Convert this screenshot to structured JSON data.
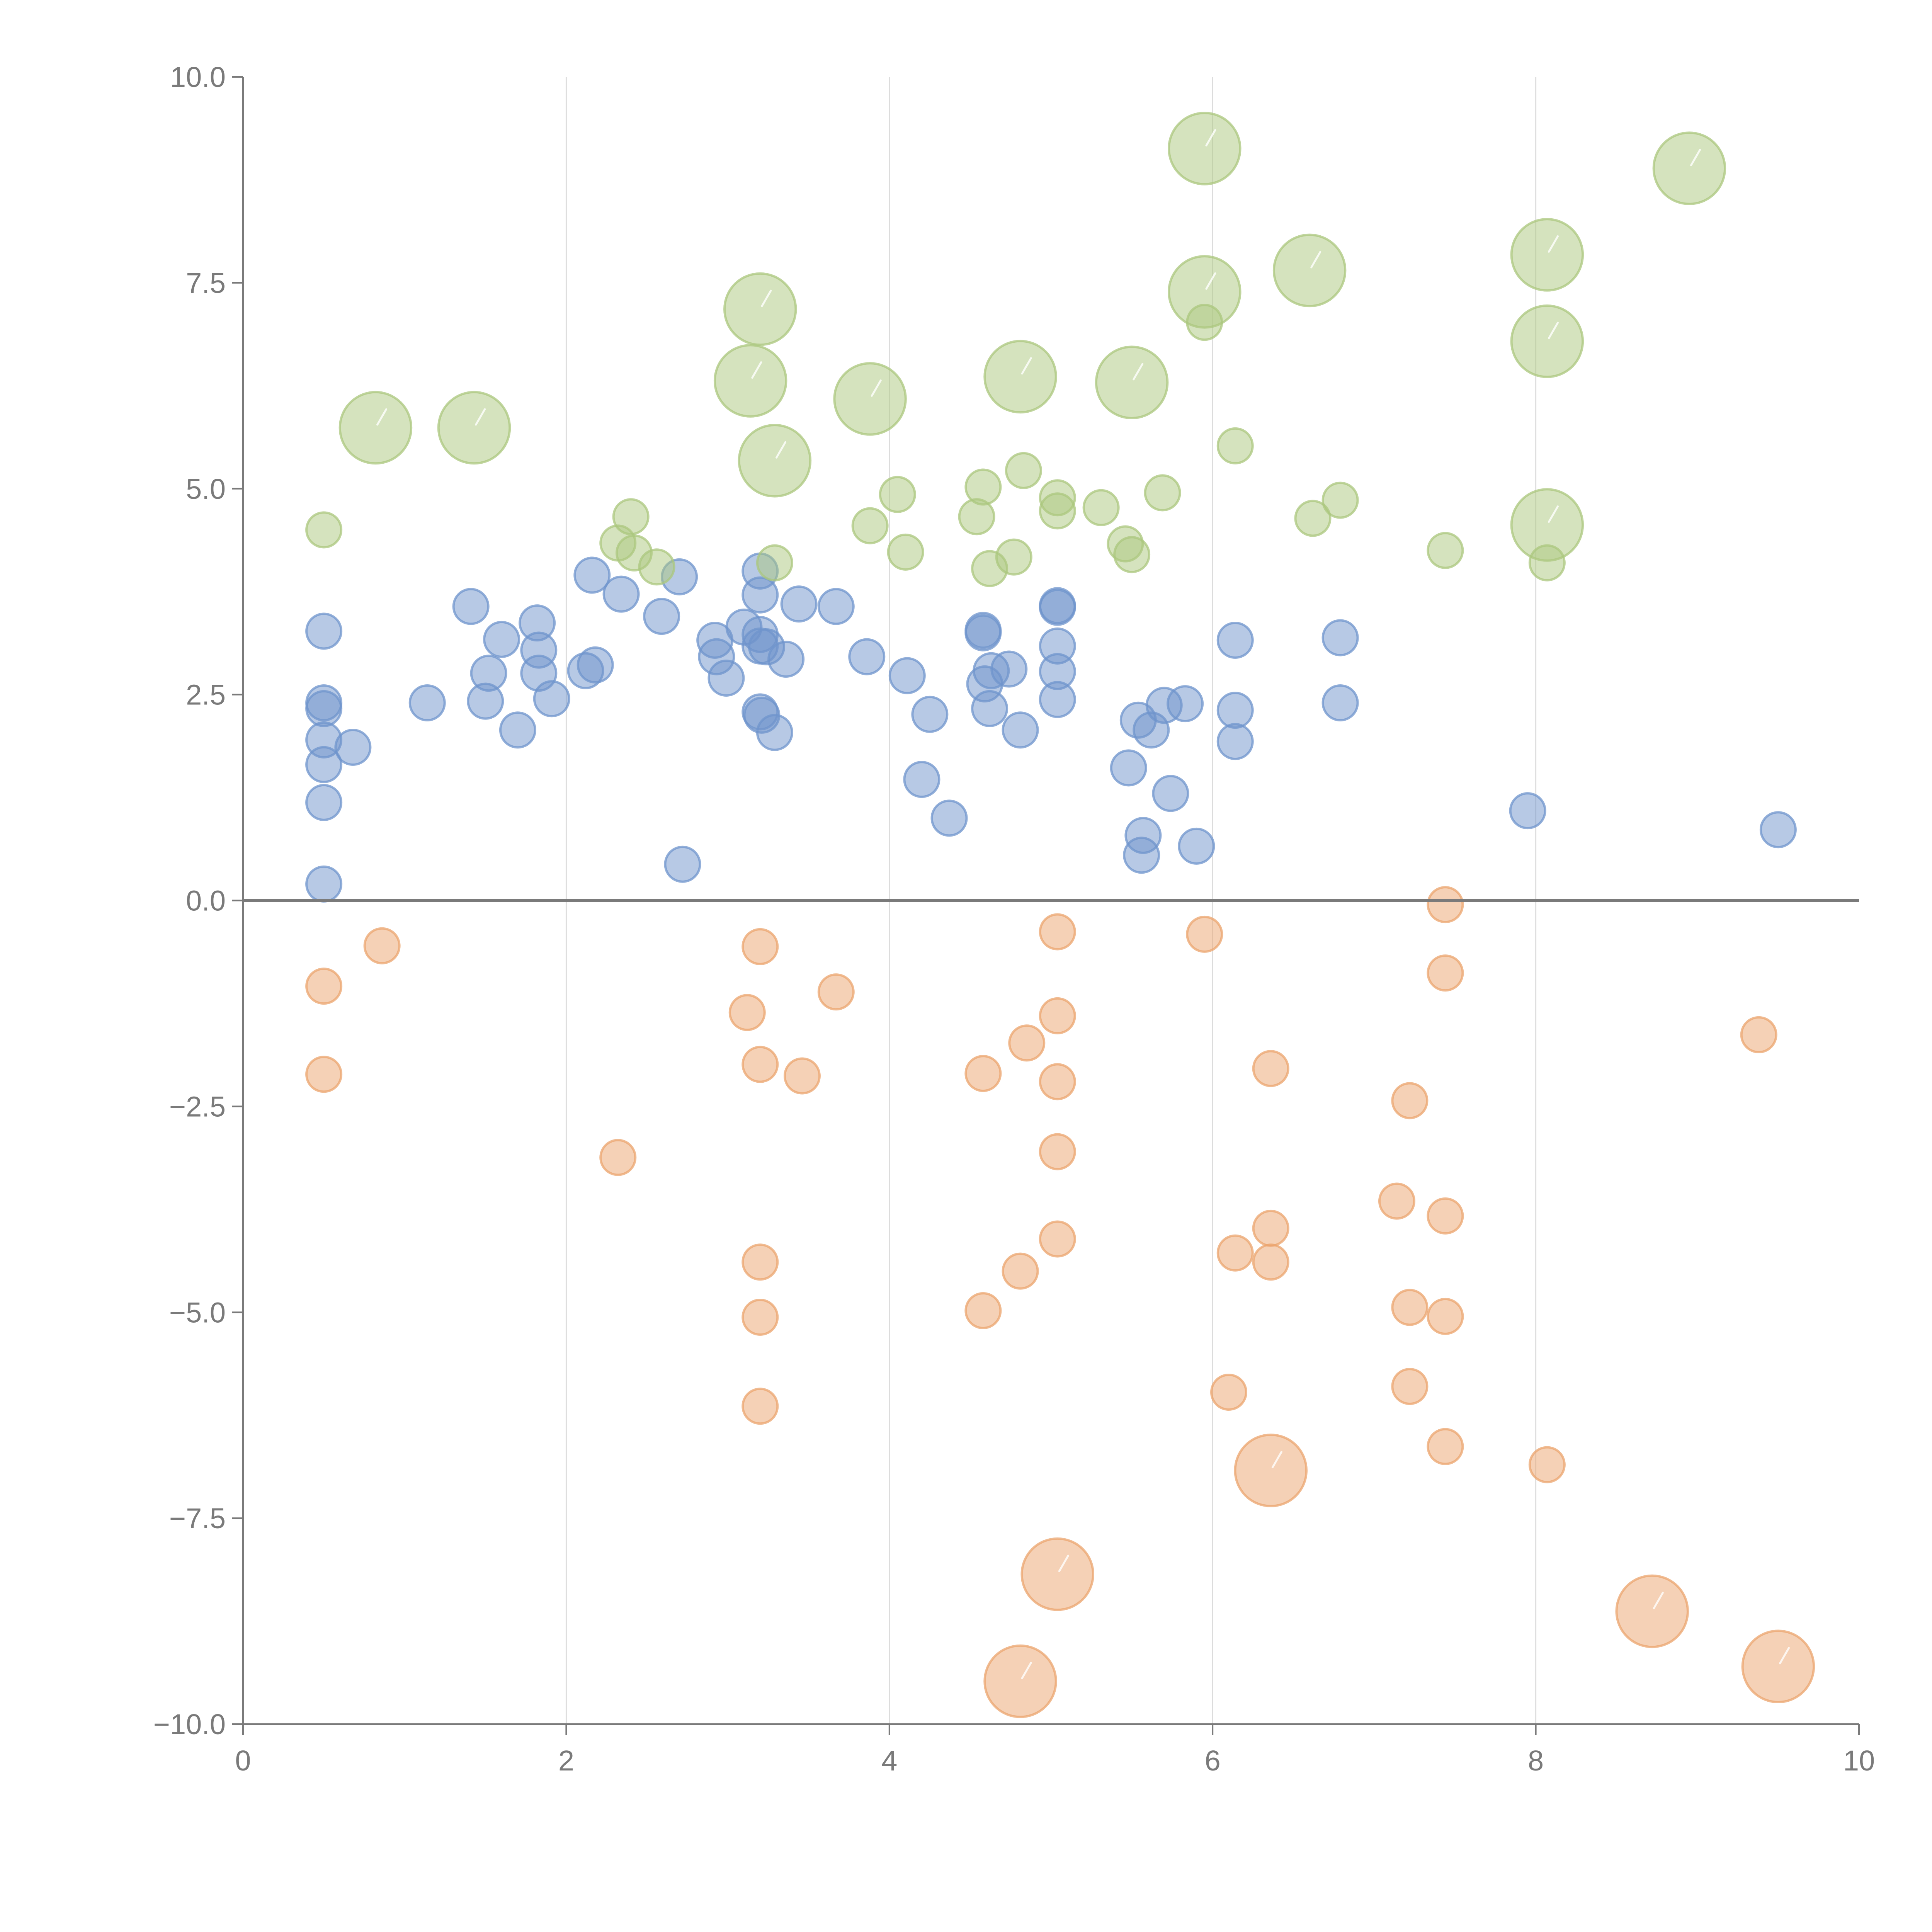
{
  "chart_data": {
    "type": "scatter",
    "title": "",
    "xlabel": "",
    "ylabel": "",
    "xlim": [
      0,
      10
    ],
    "ylim": [
      -10,
      10
    ],
    "x_ticks": [
      0,
      2,
      4,
      6,
      8,
      10
    ],
    "x_tick_labels": [
      "0",
      "2",
      "4",
      "6",
      "8",
      "10"
    ],
    "y_ticks": [
      10,
      7.5,
      5,
      2.5,
      0,
      -2.5,
      -5,
      -7.5,
      -10
    ],
    "y_tick_labels": [
      "10.0",
      "7.5",
      "5.0",
      "2.5",
      "0.0",
      "−2.5",
      "−5.0",
      "−7.5",
      "−10.0"
    ],
    "vertical_grid_at": [
      2,
      4,
      6,
      8
    ],
    "reference_line_y": 0,
    "size_note": "bubble size in relative units (1 = small marker)",
    "series": [
      {
        "name": "blue",
        "color": "#6f94cc",
        "points": [
          [
            0.5,
            3.27,
            1
          ],
          [
            0.5,
            2.4,
            1
          ],
          [
            0.5,
            2.33,
            1
          ],
          [
            0.5,
            1.95,
            1
          ],
          [
            0.5,
            1.65,
            1
          ],
          [
            0.5,
            1.19,
            1
          ],
          [
            0.5,
            0.2,
            1
          ],
          [
            0.68,
            1.86,
            1
          ],
          [
            1.14,
            2.4,
            1
          ],
          [
            1.41,
            3.57,
            1
          ],
          [
            1.5,
            2.42,
            1
          ],
          [
            1.52,
            2.76,
            1
          ],
          [
            1.6,
            3.17,
            1
          ],
          [
            1.7,
            2.07,
            1
          ],
          [
            1.82,
            3.37,
            1
          ],
          [
            1.83,
            3.04,
            1
          ],
          [
            1.83,
            2.76,
            1
          ],
          [
            1.91,
            2.45,
            1
          ],
          [
            2.12,
            2.79,
            1
          ],
          [
            2.16,
            3.95,
            1
          ],
          [
            2.18,
            2.86,
            1
          ],
          [
            2.34,
            3.72,
            1
          ],
          [
            2.59,
            3.45,
            1
          ],
          [
            2.7,
            3.93,
            1
          ],
          [
            2.72,
            0.44,
            1
          ],
          [
            2.92,
            3.16,
            1
          ],
          [
            2.93,
            2.96,
            1
          ],
          [
            2.99,
            2.7,
            1
          ],
          [
            3.1,
            3.32,
            1
          ],
          [
            3.2,
            4.0,
            1
          ],
          [
            3.2,
            3.71,
            1
          ],
          [
            3.2,
            3.23,
            1
          ],
          [
            3.2,
            3.09,
            1
          ],
          [
            3.2,
            2.29,
            1
          ],
          [
            3.21,
            2.25,
            1
          ],
          [
            3.24,
            3.08,
            1
          ],
          [
            3.29,
            2.04,
            1
          ],
          [
            3.36,
            2.93,
            1
          ],
          [
            3.44,
            3.6,
            1
          ],
          [
            3.67,
            3.57,
            1
          ],
          [
            3.86,
            2.96,
            1
          ],
          [
            4.11,
            2.73,
            1
          ],
          [
            4.2,
            1.47,
            1
          ],
          [
            4.25,
            2.26,
            1
          ],
          [
            4.37,
            1.0,
            1
          ],
          [
            4.58,
            3.28,
            1
          ],
          [
            4.58,
            3.25,
            1
          ],
          [
            4.59,
            2.63,
            1
          ],
          [
            4.62,
            2.33,
            1
          ],
          [
            4.63,
            2.79,
            1
          ],
          [
            4.74,
            2.81,
            1
          ],
          [
            4.81,
            2.07,
            1
          ],
          [
            5.04,
            3.58,
            1
          ],
          [
            5.04,
            3.56,
            1
          ],
          [
            5.04,
            3.09,
            1
          ],
          [
            5.04,
            2.78,
            1
          ],
          [
            5.04,
            2.44,
            1
          ],
          [
            5.48,
            1.61,
            1
          ],
          [
            5.54,
            2.19,
            1
          ],
          [
            5.56,
            0.55,
            1
          ],
          [
            5.57,
            0.79,
            1
          ],
          [
            5.62,
            2.07,
            1
          ],
          [
            5.7,
            2.37,
            1
          ],
          [
            5.74,
            1.3,
            1
          ],
          [
            5.83,
            2.39,
            1
          ],
          [
            5.9,
            0.66,
            1
          ],
          [
            6.14,
            3.16,
            1
          ],
          [
            6.14,
            2.31,
            1
          ],
          [
            6.14,
            1.93,
            1
          ],
          [
            6.79,
            3.19,
            1
          ],
          [
            6.79,
            2.4,
            1
          ],
          [
            7.95,
            1.09,
            1
          ],
          [
            9.5,
            0.86,
            1
          ]
        ]
      },
      {
        "name": "green",
        "color": "#abc77e",
        "points": [
          [
            0.5,
            4.5,
            1
          ],
          [
            0.82,
            5.74,
            2.05
          ],
          [
            1.43,
            5.74,
            2.05
          ],
          [
            2.32,
            4.34,
            1
          ],
          [
            2.4,
            4.66,
            1
          ],
          [
            2.42,
            4.22,
            1
          ],
          [
            2.56,
            4.05,
            1
          ],
          [
            3.14,
            6.31,
            2.05
          ],
          [
            3.2,
            7.18,
            2.05
          ],
          [
            3.29,
            4.1,
            1
          ],
          [
            3.29,
            5.34,
            2.05
          ],
          [
            3.88,
            4.55,
            1
          ],
          [
            3.88,
            6.09,
            2.05
          ],
          [
            4.05,
            4.93,
            1
          ],
          [
            4.1,
            4.23,
            1
          ],
          [
            4.54,
            4.66,
            1
          ],
          [
            4.58,
            5.02,
            1
          ],
          [
            4.62,
            4.03,
            1
          ],
          [
            4.77,
            4.17,
            1
          ],
          [
            4.81,
            6.36,
            2.05
          ],
          [
            4.83,
            5.22,
            1
          ],
          [
            5.04,
            4.89,
            1
          ],
          [
            5.04,
            4.73,
            1
          ],
          [
            5.31,
            4.77,
            1
          ],
          [
            5.46,
            4.33,
            1
          ],
          [
            5.5,
            4.2,
            1
          ],
          [
            5.5,
            6.29,
            2.05
          ],
          [
            5.69,
            4.95,
            1
          ],
          [
            5.95,
            9.13,
            2.05
          ],
          [
            5.95,
            7.39,
            2.05
          ],
          [
            5.95,
            7.02,
            1
          ],
          [
            6.14,
            5.52,
            1
          ],
          [
            6.6,
            7.65,
            2.05
          ],
          [
            6.62,
            4.64,
            1
          ],
          [
            6.79,
            4.86,
            1
          ],
          [
            7.44,
            4.25,
            1
          ],
          [
            8.07,
            7.84,
            2.05
          ],
          [
            8.07,
            6.79,
            2.05
          ],
          [
            8.07,
            4.56,
            2.05
          ],
          [
            8.07,
            4.1,
            1
          ],
          [
            8.95,
            8.89,
            2.05
          ]
        ]
      },
      {
        "name": "orange",
        "color": "#eba46e",
        "points": [
          [
            0.5,
            -1.04,
            1
          ],
          [
            0.5,
            -2.11,
            1
          ],
          [
            0.86,
            -0.55,
            1
          ],
          [
            2.32,
            -3.12,
            1
          ],
          [
            3.12,
            -1.36,
            1
          ],
          [
            3.2,
            -0.56,
            1
          ],
          [
            3.2,
            -1.99,
            1
          ],
          [
            3.2,
            -4.39,
            1
          ],
          [
            3.2,
            -5.06,
            1
          ],
          [
            3.2,
            -6.14,
            1
          ],
          [
            3.46,
            -2.13,
            1
          ],
          [
            3.67,
            -1.11,
            1
          ],
          [
            4.58,
            -2.1,
            1
          ],
          [
            4.58,
            -4.98,
            1
          ],
          [
            4.81,
            -4.5,
            1
          ],
          [
            4.81,
            -9.48,
            2.05
          ],
          [
            4.85,
            -1.73,
            1
          ],
          [
            5.04,
            -0.38,
            1
          ],
          [
            5.04,
            -1.4,
            1
          ],
          [
            5.04,
            -2.2,
            1
          ],
          [
            5.04,
            -3.05,
            1
          ],
          [
            5.04,
            -4.11,
            1
          ],
          [
            5.04,
            -8.18,
            2.05
          ],
          [
            5.95,
            -0.41,
            1
          ],
          [
            6.1,
            -5.97,
            1
          ],
          [
            6.14,
            -4.28,
            1
          ],
          [
            6.36,
            -2.04,
            1
          ],
          [
            6.36,
            -3.98,
            1
          ],
          [
            6.36,
            -4.39,
            1
          ],
          [
            6.36,
            -6.92,
            2.05
          ],
          [
            7.14,
            -3.65,
            1
          ],
          [
            7.22,
            -2.43,
            1
          ],
          [
            7.22,
            -4.94,
            1
          ],
          [
            7.22,
            -5.9,
            1
          ],
          [
            7.44,
            -0.05,
            1
          ],
          [
            7.44,
            -0.88,
            1
          ],
          [
            7.44,
            -3.83,
            1
          ],
          [
            7.44,
            -5.05,
            1
          ],
          [
            7.44,
            -6.63,
            1
          ],
          [
            8.07,
            -6.85,
            1
          ],
          [
            8.72,
            -8.63,
            2.05
          ],
          [
            9.38,
            -1.63,
            1
          ],
          [
            9.5,
            -9.3,
            2.05
          ]
        ]
      }
    ]
  }
}
